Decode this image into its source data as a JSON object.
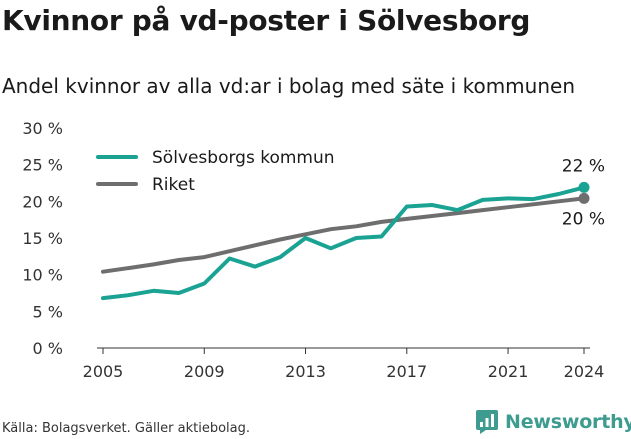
{
  "title": "Kvinnor på vd-poster i Sölvesborg",
  "subtitle": "Andel kvinnor av alla vd:ar i bolag med säte i kommunen",
  "footer": "Källa: Bolagsverket. Gäller aktiebolag.",
  "brand": {
    "name": "Newsworthy",
    "icon": "newsworthy-logo-icon",
    "color": "#3d9b8f"
  },
  "chart_data": {
    "type": "line",
    "x": [
      2005,
      2006,
      2007,
      2008,
      2009,
      2010,
      2011,
      2012,
      2013,
      2014,
      2015,
      2016,
      2017,
      2018,
      2019,
      2020,
      2021,
      2022,
      2023,
      2024
    ],
    "x_ticks": [
      "2005",
      "2009",
      "2013",
      "2017",
      "2021",
      "2024"
    ],
    "y_ticks": [
      "0 %",
      "5 %",
      "10 %",
      "15 %",
      "20 %",
      "25 %",
      "30 %"
    ],
    "ylim": [
      0,
      30
    ],
    "xlim": [
      2005,
      2024
    ],
    "grid": false,
    "legend": "top-left",
    "series": [
      {
        "name": "Sölvesborgs kommun",
        "color": "#1aa392",
        "values": [
          6.8,
          7.2,
          7.8,
          7.5,
          8.8,
          12.2,
          11.1,
          12.4,
          15.0,
          13.6,
          15.0,
          15.2,
          19.3,
          19.5,
          18.8,
          20.2,
          20.4,
          20.3,
          21.0,
          21.9
        ],
        "end_label": "22 %"
      },
      {
        "name": "Riket",
        "color": "#6e6e6e",
        "values": [
          10.4,
          10.9,
          11.4,
          12.0,
          12.4,
          13.2,
          14.0,
          14.8,
          15.5,
          16.2,
          16.6,
          17.2,
          17.6,
          18.0,
          18.4,
          18.8,
          19.2,
          19.6,
          20.0,
          20.4
        ],
        "end_label": "20 %"
      }
    ]
  }
}
